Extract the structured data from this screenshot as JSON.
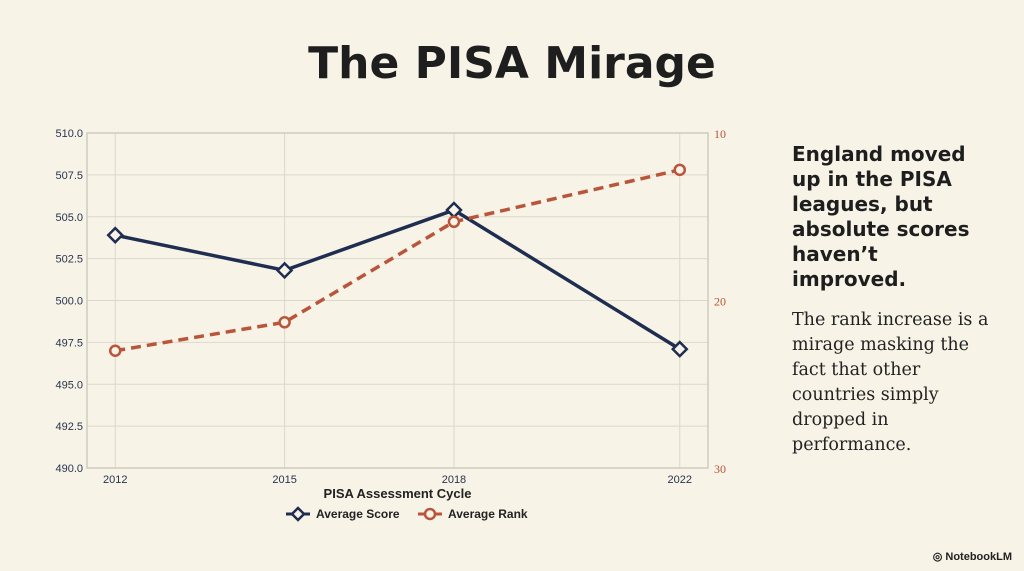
{
  "title": "The PISA Mirage",
  "side": {
    "headline": "England moved up in the PISA leagues, but absolute scores haven’t improved.",
    "body": "The rank increase is a mirage masking the fact that other countries simply dropped in performance."
  },
  "brand": "NotebookLM",
  "chart_data": {
    "type": "line",
    "x": [
      2012,
      2015,
      2018,
      2022
    ],
    "xlabel": "PISA Assessment Cycle",
    "x_tick_labels": [
      "2012",
      "2015",
      "2018",
      "2022"
    ],
    "y_left": {
      "lim": [
        490,
        510
      ],
      "ticks": [
        "490.0",
        "492.5",
        "495.0",
        "497.5",
        "500.0",
        "502.5",
        "505.0",
        "507.5",
        "510.0"
      ]
    },
    "y_right": {
      "lim": [
        30,
        10
      ],
      "inverted": true,
      "ticks": [
        "10",
        "20",
        "30"
      ]
    },
    "grid": true,
    "legend": "bottom",
    "series": [
      {
        "name": "Average Score",
        "axis": "left",
        "values": [
          503.9,
          501.8,
          505.4,
          497.1
        ],
        "color": "#1f2d50",
        "marker": "diamond",
        "style": "solid"
      },
      {
        "name": "Average Rank",
        "axis": "right",
        "values": [
          23.0,
          21.3,
          15.3,
          12.2
        ],
        "color": "#b9553a",
        "marker": "circle",
        "style": "dashed"
      }
    ]
  }
}
